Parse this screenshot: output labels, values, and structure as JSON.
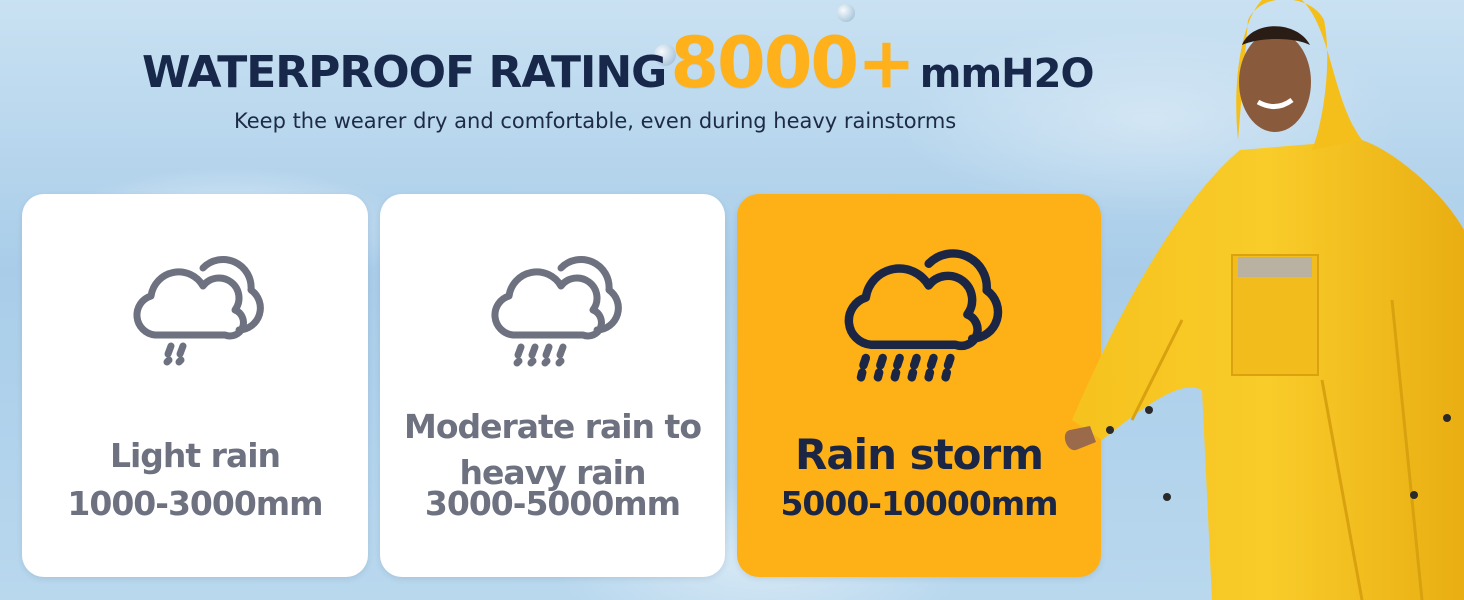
{
  "header": {
    "title_main": "WATERPROOF RATING",
    "title_number": "8000+",
    "title_unit": "mmH2O",
    "subtitle": "Keep the wearer dry and comfortable, even during heavy rainstorms"
  },
  "cards": [
    {
      "icon": "cloud-light-rain-icon",
      "label": "Light rain",
      "range": "1000-3000mm"
    },
    {
      "icon": "cloud-moderate-rain-icon",
      "label": "Moderate rain to heavy rain",
      "range": "3000-5000mm"
    },
    {
      "icon": "cloud-storm-rain-icon",
      "label": "Rain storm",
      "range": "5000-10000mm"
    }
  ],
  "colors": {
    "accent": "#fdb117",
    "navy": "#17284a",
    "gray_text": "#6d7180",
    "poncho_yellow": "#f5c21c"
  },
  "model_image": "person-in-yellow-rain-poncho"
}
